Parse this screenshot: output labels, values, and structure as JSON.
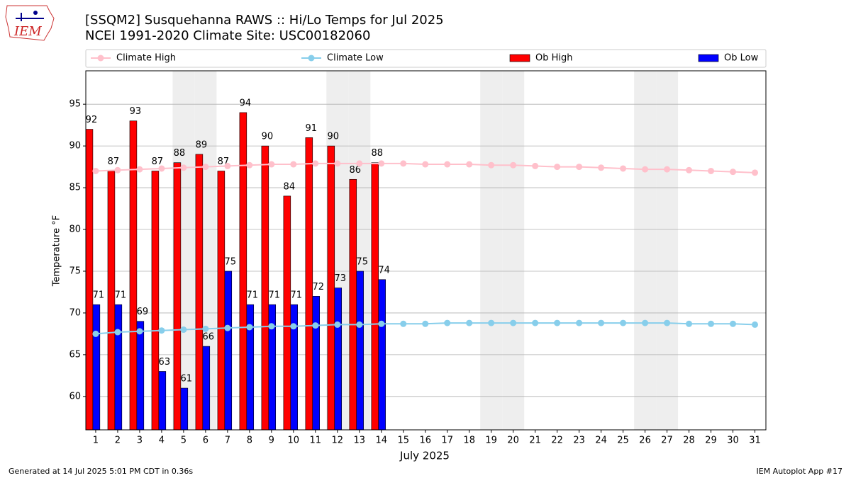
{
  "chart_data": {
    "type": "bar",
    "logo_text": "IEM",
    "title": "[SSQM2] Susquehanna RAWS :: Hi/Lo Temps for Jul 2025",
    "subtitle": "NCEI 1991-2020 Climate Site: USC00182060",
    "x_label": "July 2025",
    "y_label": "Temperature °F",
    "footer_left": "Generated at 14 Jul 2025 5:01 PM CDT in 0.36s",
    "footer_right": "IEM Autoplot App #17",
    "x": [
      1,
      2,
      3,
      4,
      5,
      6,
      7,
      8,
      9,
      10,
      11,
      12,
      13,
      14,
      15,
      16,
      17,
      18,
      19,
      20,
      21,
      22,
      23,
      24,
      25,
      26,
      27,
      28,
      29,
      30,
      31
    ],
    "weekend_days": [
      5,
      6,
      12,
      13,
      19,
      20,
      26,
      27
    ],
    "series": [
      {
        "name": "Climate High",
        "type": "line",
        "color": "#ffc0cb",
        "values": [
          87.0,
          87.1,
          87.2,
          87.3,
          87.4,
          87.5,
          87.6,
          87.7,
          87.8,
          87.8,
          87.9,
          87.9,
          87.9,
          87.9,
          87.9,
          87.8,
          87.8,
          87.8,
          87.7,
          87.7,
          87.6,
          87.5,
          87.5,
          87.4,
          87.3,
          87.2,
          87.2,
          87.1,
          87.0,
          86.9,
          86.8
        ]
      },
      {
        "name": "Climate Low",
        "type": "line",
        "color": "#87ceeb",
        "values": [
          67.5,
          67.7,
          67.8,
          67.9,
          68.0,
          68.1,
          68.2,
          68.3,
          68.4,
          68.4,
          68.5,
          68.6,
          68.6,
          68.7,
          68.7,
          68.7,
          68.8,
          68.8,
          68.8,
          68.8,
          68.8,
          68.8,
          68.8,
          68.8,
          68.8,
          68.8,
          68.8,
          68.7,
          68.7,
          68.7,
          68.6
        ]
      },
      {
        "name": "Ob High",
        "type": "bar",
        "color": "#ff0000",
        "values": [
          92,
          87,
          93,
          87,
          88,
          89,
          87,
          94,
          90,
          84,
          91,
          90,
          86,
          88,
          null,
          null,
          null,
          null,
          null,
          null,
          null,
          null,
          null,
          null,
          null,
          null,
          null,
          null,
          null,
          null,
          null
        ]
      },
      {
        "name": "Ob Low",
        "type": "bar",
        "color": "#0000ff",
        "values": [
          71,
          71,
          69,
          63,
          61,
          66,
          75,
          71,
          71,
          71,
          72,
          73,
          75,
          74,
          null,
          null,
          null,
          null,
          null,
          null,
          null,
          null,
          null,
          null,
          null,
          null,
          null,
          null,
          null,
          null,
          null
        ]
      }
    ],
    "xlim": [
      0.55,
      31.5
    ],
    "ylim": [
      56,
      99
    ],
    "xticks": [
      1,
      2,
      3,
      4,
      5,
      6,
      7,
      8,
      9,
      10,
      11,
      12,
      13,
      14,
      15,
      16,
      17,
      18,
      19,
      20,
      21,
      22,
      23,
      24,
      25,
      26,
      27,
      28,
      29,
      30,
      31
    ],
    "yticks": [
      60,
      65,
      70,
      75,
      80,
      85,
      90,
      95
    ],
    "grid": true,
    "legend": "top"
  }
}
